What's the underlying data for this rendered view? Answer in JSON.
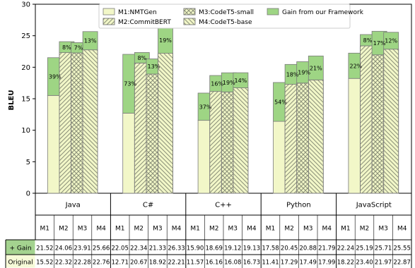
{
  "chart_data": {
    "type": "bar",
    "ylabel": "BLEU",
    "ylim": [
      0,
      30
    ],
    "yticks": [
      0,
      5,
      10,
      15,
      20,
      25,
      30
    ],
    "legend_position": "top",
    "languages": [
      "Java",
      "C#",
      "C++",
      "Python",
      "JavaScript"
    ],
    "models": [
      "M1",
      "M2",
      "M3",
      "M4"
    ],
    "legend": [
      {
        "key": "M1",
        "label": "M1:NMTGen"
      },
      {
        "key": "M2",
        "label": "M2:CommitBERT"
      },
      {
        "key": "M3",
        "label": "M3:CodeT5-small"
      },
      {
        "key": "M4",
        "label": "M4:CodeT5-base"
      },
      {
        "key": "gain",
        "label": "Gain from our Framework"
      }
    ],
    "series": [
      {
        "name": "Original",
        "values": [
          [
            15.52,
            22.32,
            22.28,
            22.76
          ],
          [
            12.71,
            20.67,
            18.92,
            22.21
          ],
          [
            11.57,
            16.16,
            16.08,
            16.73
          ],
          [
            11.41,
            17.29,
            17.49,
            17.99
          ],
          [
            18.22,
            23.4,
            21.97,
            22.87
          ]
        ]
      },
      {
        "name": "+ Gain",
        "values": [
          [
            21.52,
            24.06,
            23.91,
            25.66
          ],
          [
            22.05,
            22.34,
            21.33,
            26.33
          ],
          [
            15.9,
            18.69,
            19.12,
            19.13
          ],
          [
            17.58,
            20.45,
            20.88,
            21.79
          ],
          [
            22.24,
            25.19,
            25.71,
            25.55
          ]
        ]
      }
    ],
    "gain_labels": [
      [
        "39%",
        "8%",
        "7%",
        "13%"
      ],
      [
        "73%",
        "8%",
        "13%",
        "19%"
      ],
      [
        "37%",
        "16%",
        "19%",
        "14%"
      ],
      [
        "54%",
        "18%",
        "19%",
        "21%"
      ],
      [
        "22%",
        "8%",
        "17%",
        "12%"
      ]
    ],
    "table_rows": [
      {
        "label": "+ Gain",
        "values": [
          "21.52",
          "24.06",
          "23.91",
          "25.66",
          "22.05",
          "22.34",
          "21.33",
          "26.33",
          "15.90",
          "18.69",
          "19.12",
          "19.13",
          "17.58",
          "20.45",
          "20.88",
          "21.79",
          "22.24",
          "25.19",
          "25.71",
          "25.55"
        ]
      },
      {
        "label": "Original",
        "values": [
          "15.52",
          "22.32",
          "22.28",
          "22.76",
          "12.71",
          "20.67",
          "18.92",
          "22.21",
          "11.57",
          "16.16",
          "16.08",
          "16.73",
          "11.41",
          "17.29",
          "17.49",
          "17.99",
          "18.22",
          "23.40",
          "21.97",
          "22.87"
        ]
      }
    ],
    "colors": {
      "original_fill": "#f2f7c8",
      "gain_fill": "#9ed584",
      "hatch": "#8a8f78",
      "edge": "#7b7b7b",
      "gain_cell": "#a4d38f",
      "original_cell": "#f7fbd8"
    }
  }
}
